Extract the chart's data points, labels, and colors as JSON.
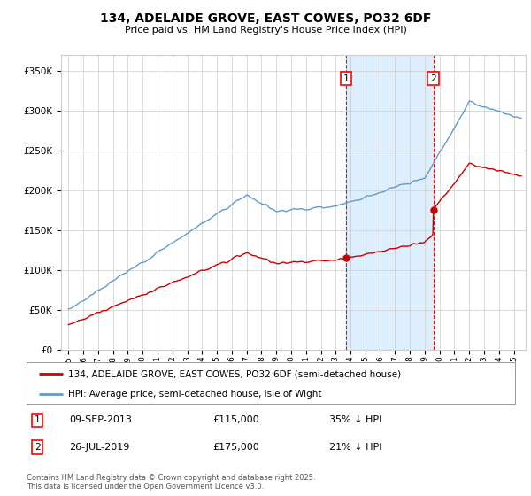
{
  "title": "134, ADELAIDE GROVE, EAST COWES, PO32 6DF",
  "subtitle": "Price paid vs. HM Land Registry's House Price Index (HPI)",
  "ylim": [
    0,
    370000
  ],
  "yticks": [
    0,
    50000,
    100000,
    150000,
    200000,
    250000,
    300000,
    350000
  ],
  "sale1_date": "09-SEP-2013",
  "sale1_price": 115000,
  "sale1_label": "35% ↓ HPI",
  "sale2_date": "26-JUL-2019",
  "sale2_price": 175000,
  "sale2_label": "21% ↓ HPI",
  "legend_line1": "134, ADELAIDE GROVE, EAST COWES, PO32 6DF (semi-detached house)",
  "legend_line2": "HPI: Average price, semi-detached house, Isle of Wight",
  "footer": "Contains HM Land Registry data © Crown copyright and database right 2025.\nThis data is licensed under the Open Government Licence v3.0.",
  "line_color_red": "#cc0000",
  "line_color_blue": "#6699cc",
  "shading_color": "#ddeeff",
  "grid_color": "#cccccc",
  "background_color": "#ffffff",
  "sale1_year": 2013.69,
  "sale2_year": 2019.57
}
